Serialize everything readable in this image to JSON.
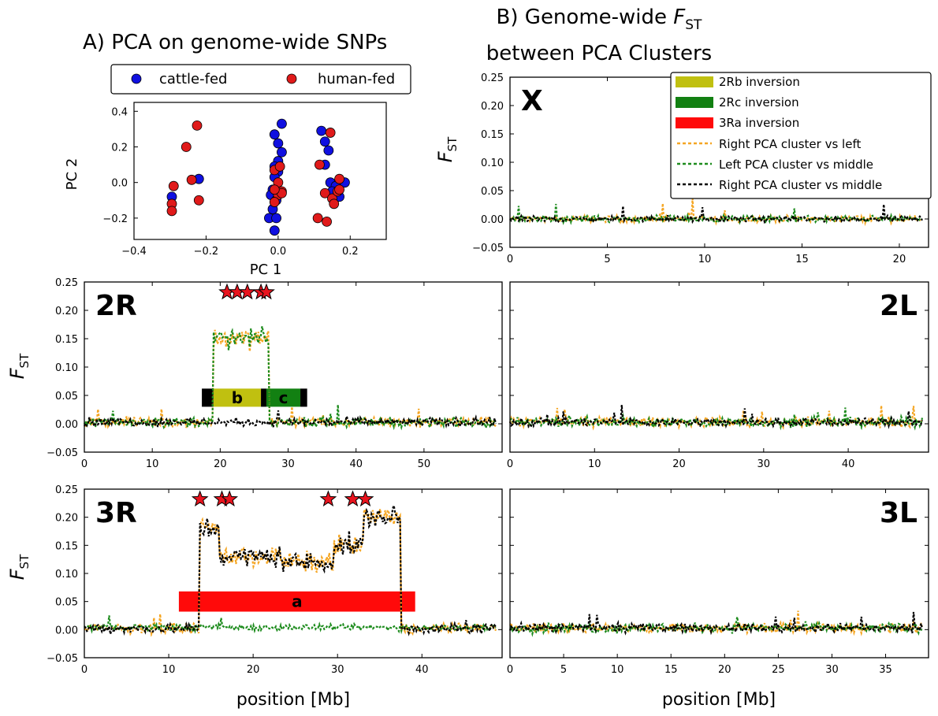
{
  "titles": {
    "a": "A) PCA on genome-wide SNPs",
    "b_line1_pre": "B) Genome-wide ",
    "b_line1_var": "F",
    "b_line1_sub": "ST",
    "b_line2": "between PCA Clusters"
  },
  "axis_labels": {
    "fst_var": "F",
    "fst_sub": "ST",
    "position": "position [Mb]",
    "pc1": "PC 1",
    "pc2": "PC 2"
  },
  "colors": {
    "cattle": "#1010e0",
    "human": "#e01a1a",
    "inv_2Rb": "#c0c010",
    "inv_2Rc": "#128012",
    "inv_3Ra": "#ff0a0a",
    "right_vs_left": "#f5a623",
    "left_vs_middle": "#1e8c1e",
    "right_vs_middle": "#000000"
  },
  "chart_data": [
    {
      "type": "scatter",
      "title": "A) PCA on genome-wide SNPs",
      "xlabel": "PC 1",
      "ylabel": "PC 2",
      "xlim": [
        -0.4,
        0.3
      ],
      "ylim": [
        -0.32,
        0.45
      ],
      "xticks": [
        "−0.4",
        "−0.2",
        "0.0",
        "0.2"
      ],
      "yticks": [
        "−0.2",
        "0.0",
        "0.2",
        "0.4"
      ],
      "legend": {
        "placement": "top",
        "entries": [
          "cattle-fed",
          "human-fed"
        ]
      },
      "series": [
        {
          "name": "cattle-fed",
          "points": [
            [
              -0.295,
              -0.08
            ],
            [
              -0.22,
              0.02
            ],
            [
              0.01,
              0.33
            ],
            [
              -0.01,
              0.27
            ],
            [
              0.0,
              0.22
            ],
            [
              0.01,
              0.17
            ],
            [
              0.0,
              0.12
            ],
            [
              -0.01,
              0.09
            ],
            [
              0.0,
              0.06
            ],
            [
              -0.01,
              0.03
            ],
            [
              -0.015,
              -0.04
            ],
            [
              -0.02,
              -0.07
            ],
            [
              -0.005,
              -0.1
            ],
            [
              -0.015,
              -0.15
            ],
            [
              -0.025,
              -0.2
            ],
            [
              -0.005,
              -0.2
            ],
            [
              -0.01,
              -0.27
            ],
            [
              0.12,
              0.29
            ],
            [
              0.13,
              0.23
            ],
            [
              0.14,
              0.18
            ],
            [
              0.13,
              0.1
            ],
            [
              0.145,
              0.0
            ],
            [
              0.16,
              -0.02
            ],
            [
              0.185,
              0.0
            ],
            [
              0.15,
              -0.05
            ],
            [
              0.17,
              -0.08
            ]
          ]
        },
        {
          "name": "human-fed",
          "points": [
            [
              -0.255,
              0.2
            ],
            [
              -0.225,
              0.32
            ],
            [
              -0.24,
              0.015
            ],
            [
              -0.22,
              -0.1
            ],
            [
              -0.29,
              -0.02
            ],
            [
              -0.295,
              -0.12
            ],
            [
              -0.295,
              -0.16
            ],
            [
              -0.01,
              0.07
            ],
            [
              0.005,
              0.09
            ],
            [
              0.0,
              0.0
            ],
            [
              0.01,
              -0.05
            ],
            [
              0.0,
              -0.07
            ],
            [
              0.01,
              -0.06
            ],
            [
              -0.01,
              -0.04
            ],
            [
              -0.01,
              -0.11
            ],
            [
              0.145,
              0.28
            ],
            [
              0.115,
              0.1
            ],
            [
              0.13,
              -0.06
            ],
            [
              0.15,
              -0.09
            ],
            [
              0.17,
              0.02
            ],
            [
              0.165,
              -0.05
            ],
            [
              0.11,
              -0.2
            ],
            [
              0.135,
              -0.22
            ],
            [
              0.155,
              -0.12
            ],
            [
              0.17,
              -0.04
            ]
          ]
        }
      ]
    },
    {
      "type": "line",
      "panel": "X",
      "xlabel": "",
      "ylabel": "FST",
      "xlim": [
        0,
        21.5
      ],
      "ylim": [
        -0.05,
        0.25
      ],
      "xticks": [
        "0",
        "5",
        "10",
        "15",
        "20"
      ],
      "yticks": [
        "−0.05",
        "0.00",
        "0.05",
        "0.10",
        "0.15",
        "0.20",
        "0.25"
      ],
      "inversions": [],
      "stars": [],
      "legend": {
        "placement": "top-right",
        "entries": [
          "2Rb inversion",
          "2Rc inversion",
          "3Ra inversion",
          "Right PCA cluster vs left",
          "Left PCA cluster vs middle",
          "Right PCA cluster vs middle"
        ]
      },
      "series": [
        {
          "name": "Right PCA cluster vs left",
          "baseline": 0.0,
          "noise": 0.006,
          "regions": []
        },
        {
          "name": "Left PCA cluster vs middle",
          "baseline": 0.0,
          "noise": 0.006,
          "regions": []
        },
        {
          "name": "Right PCA cluster vs middle",
          "baseline": 0.0,
          "noise": 0.005,
          "regions": []
        }
      ]
    },
    {
      "type": "line",
      "panel": "2R",
      "xlabel": "",
      "ylabel": "FST",
      "xlim": [
        0,
        61.5
      ],
      "ylim": [
        -0.05,
        0.25
      ],
      "xticks": [
        "0",
        "10",
        "20",
        "30",
        "40",
        "50"
      ],
      "yticks": [
        "−0.05",
        "0.00",
        "0.05",
        "0.10",
        "0.15",
        "0.20",
        "0.25"
      ],
      "inversions": [
        {
          "label": "b",
          "start": 19.0,
          "end": 26.0,
          "fill_key": "inv_2Rb",
          "end_caps": [
            [
              17.3,
              19.0
            ],
            [
              26.0,
              26.8
            ]
          ]
        },
        {
          "label": "c",
          "start": 26.8,
          "end": 31.8,
          "fill_key": "inv_2Rc",
          "end_caps": [
            [
              31.8,
              32.8
            ]
          ]
        }
      ],
      "stars": [
        21.0,
        22.5,
        24.0,
        26.0,
        26.8
      ],
      "series": [
        {
          "name": "Right PCA cluster vs left",
          "baseline": 0.003,
          "noise": 0.009,
          "regions": [
            [
              19.0,
              27.2,
              0.15
            ]
          ]
        },
        {
          "name": "Left PCA cluster vs middle",
          "baseline": 0.003,
          "noise": 0.009,
          "regions": [
            [
              19.0,
              27.2,
              0.15
            ]
          ]
        },
        {
          "name": "Right PCA cluster vs middle",
          "baseline": 0.003,
          "noise": 0.008,
          "regions": []
        }
      ]
    },
    {
      "type": "line",
      "panel": "2L",
      "xlabel": "",
      "ylabel": "",
      "xlim": [
        0,
        49.5
      ],
      "ylim": [
        -0.05,
        0.25
      ],
      "xticks": [
        "0",
        "10",
        "20",
        "30",
        "40"
      ],
      "yticks": [],
      "inversions": [],
      "stars": [],
      "series": [
        {
          "name": "Right PCA cluster vs left",
          "baseline": 0.003,
          "noise": 0.009,
          "regions": []
        },
        {
          "name": "Left PCA cluster vs middle",
          "baseline": 0.003,
          "noise": 0.009,
          "regions": []
        },
        {
          "name": "Right PCA cluster vs middle",
          "baseline": 0.003,
          "noise": 0.008,
          "regions": []
        }
      ]
    },
    {
      "type": "line",
      "panel": "3R",
      "xlabel": "position [Mb]",
      "ylabel": "FST",
      "xlim": [
        0,
        49.5
      ],
      "ylim": [
        -0.05,
        0.25
      ],
      "xticks": [
        "0",
        "10",
        "20",
        "30",
        "40"
      ],
      "yticks": [
        "−0.05",
        "0.00",
        "0.05",
        "0.10",
        "0.15",
        "0.20",
        "0.25"
      ],
      "inversions": [
        {
          "label": "a",
          "start": 11.2,
          "end": 39.2,
          "fill_key": "inv_3Ra",
          "end_caps": []
        }
      ],
      "stars": [
        13.7,
        16.3,
        17.2,
        28.9,
        31.8,
        33.3
      ],
      "series": [
        {
          "name": "Right PCA cluster vs left",
          "baseline": 0.002,
          "noise": 0.009,
          "regions": [
            [
              13.6,
              16.0,
              0.18
            ],
            [
              16.0,
              23.5,
              0.13
            ],
            [
              23.5,
              29.5,
              0.12
            ],
            [
              29.5,
              33.0,
              0.15
            ],
            [
              33.0,
              37.5,
              0.2
            ]
          ]
        },
        {
          "name": "Left PCA cluster vs middle",
          "baseline": 0.004,
          "noise": 0.006,
          "regions": []
        },
        {
          "name": "Right PCA cluster vs middle",
          "baseline": 0.002,
          "noise": 0.009,
          "regions": [
            [
              13.6,
              16.0,
              0.18
            ],
            [
              16.0,
              23.5,
              0.13
            ],
            [
              23.5,
              29.5,
              0.12
            ],
            [
              29.5,
              33.0,
              0.15
            ],
            [
              33.0,
              37.5,
              0.2
            ]
          ]
        }
      ]
    },
    {
      "type": "line",
      "panel": "3L",
      "xlabel": "position [Mb]",
      "ylabel": "",
      "xlim": [
        0,
        39
      ],
      "ylim": [
        -0.05,
        0.25
      ],
      "xticks": [
        "0",
        "5",
        "10",
        "15",
        "20",
        "25",
        "30",
        "35"
      ],
      "yticks": [],
      "inversions": [],
      "stars": [],
      "series": [
        {
          "name": "Right PCA cluster vs left",
          "baseline": 0.003,
          "noise": 0.009,
          "regions": []
        },
        {
          "name": "Left PCA cluster vs middle",
          "baseline": 0.003,
          "noise": 0.009,
          "regions": []
        },
        {
          "name": "Right PCA cluster vs middle",
          "baseline": 0.003,
          "noise": 0.008,
          "regions": []
        }
      ]
    }
  ]
}
